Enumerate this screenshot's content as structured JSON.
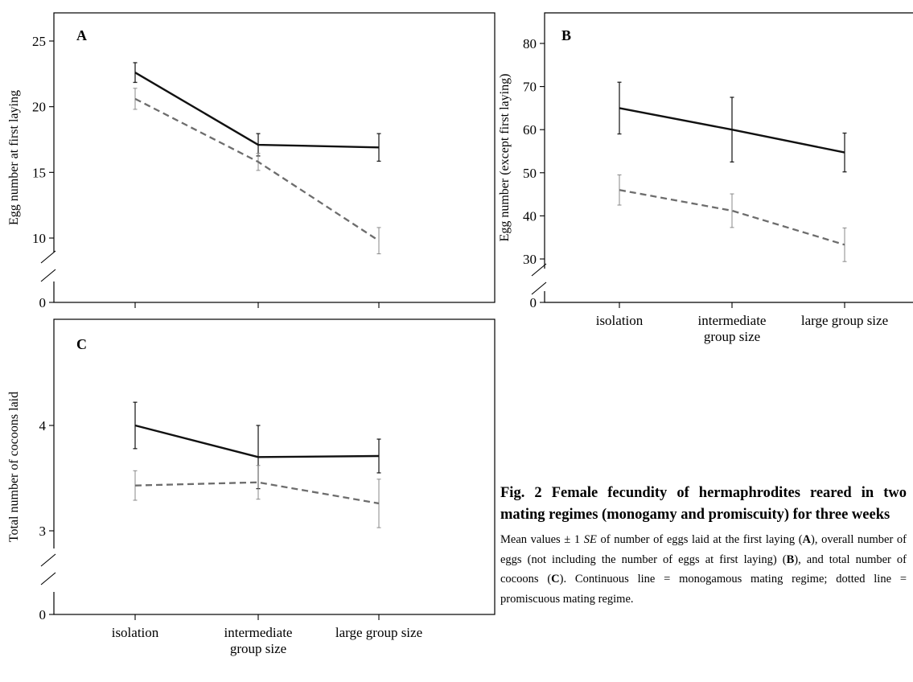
{
  "chart_data": [
    {
      "type": "line",
      "panel": "A",
      "ylabel": "Egg number at first laying",
      "categories": [
        "isolation",
        "intermediate group size",
        "large group size"
      ],
      "ylim": [
        0,
        27
      ],
      "yticks": [
        0,
        10,
        15,
        20,
        25
      ],
      "axis_break": true,
      "series": [
        {
          "style": "solid",
          "color": "#111111",
          "values": [
            22.6,
            17.1,
            16.9
          ],
          "se": [
            0.75,
            0.85,
            1.05
          ]
        },
        {
          "style": "dashed",
          "color": "#6d6d6d",
          "values": [
            20.6,
            15.8,
            9.8
          ],
          "se": [
            0.8,
            0.65,
            1.0
          ]
        }
      ]
    },
    {
      "type": "line",
      "panel": "B",
      "ylabel": "Egg number (except first laying)",
      "categories": [
        "isolation",
        "intermediate group size",
        "large group size"
      ],
      "ylim": [
        0,
        87
      ],
      "yticks": [
        0,
        30,
        40,
        50,
        60,
        70,
        80
      ],
      "axis_break": true,
      "series": [
        {
          "style": "solid",
          "color": "#111111",
          "values": [
            65,
            60,
            54.7
          ],
          "se": [
            6.0,
            7.5,
            4.5
          ]
        },
        {
          "style": "dashed",
          "color": "#6d6d6d",
          "values": [
            46,
            41.2,
            33.3
          ],
          "se": [
            3.5,
            3.9,
            3.9
          ]
        }
      ]
    },
    {
      "type": "line",
      "panel": "C",
      "ylabel": "Total number of cocoons laid",
      "categories": [
        "isolation",
        "intermediate group size",
        "large group size"
      ],
      "ylim": [
        0,
        4.78
      ],
      "yticks": [
        0,
        3,
        4
      ],
      "axis_break": true,
      "series": [
        {
          "style": "solid",
          "color": "#111111",
          "values": [
            4.0,
            3.7,
            3.71
          ],
          "se": [
            0.22,
            0.3,
            0.16
          ]
        },
        {
          "style": "dashed",
          "color": "#6d6d6d",
          "values": [
            3.43,
            3.46,
            3.26
          ],
          "se": [
            0.14,
            0.16,
            0.23
          ]
        }
      ]
    }
  ],
  "caption": {
    "title": "Fig. 2 Female fecundity of hermaphrodites reared in two mating regimes (monogamy and promiscuity) for three weeks",
    "body_parts": [
      "Mean values ± 1 ",
      "SE",
      " of number of eggs laid at the first laying (",
      "A",
      "), overall number of eggs (not including the number of eggs at first laying) (",
      "B",
      "), and total number of cocoons (",
      "C",
      "). Continuous line = monogamous mating regime; dotted line = promiscuous mating regime."
    ]
  }
}
